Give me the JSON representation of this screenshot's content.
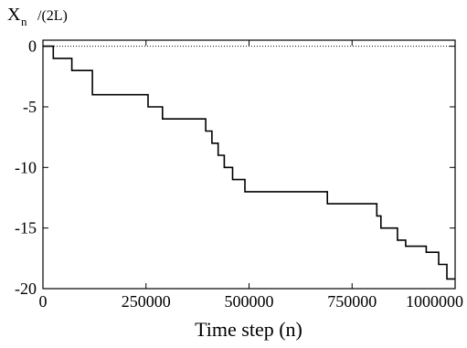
{
  "chart_data": {
    "type": "line",
    "title": "",
    "ylabel_main": "X",
    "ylabel_sub": "n",
    "ylabel_suffix": "/(2L)",
    "xlabel": "Time step (n)",
    "xlim": [
      0,
      1000000
    ],
    "ylim": [
      -20,
      0.5
    ],
    "xticks": [
      0,
      250000,
      500000,
      750000,
      1000000
    ],
    "xtick_labels": [
      "0",
      "250000",
      "500000",
      "750000",
      "1000000"
    ],
    "yticks": [
      0,
      -5,
      -10,
      -15,
      -20
    ],
    "ytick_labels": [
      "0",
      "-5",
      "-10",
      "-15",
      "-20"
    ],
    "grid": false,
    "series": [
      {
        "color": "#000000",
        "x": [
          0,
          25000,
          25000,
          70000,
          70000,
          120000,
          120000,
          255000,
          255000,
          290000,
          290000,
          395000,
          395000,
          410000,
          410000,
          425000,
          425000,
          440000,
          440000,
          460000,
          460000,
          490000,
          490000,
          690000,
          690000,
          810000,
          810000,
          820000,
          820000,
          860000,
          860000,
          880000,
          880000,
          930000,
          930000,
          960000,
          960000,
          980000,
          980000,
          1000000
        ],
        "y": [
          0,
          0,
          -1,
          -1,
          -2,
          -2,
          -4,
          -4,
          -5,
          -5,
          -6,
          -6,
          -7,
          -7,
          -8,
          -8,
          -9,
          -9,
          -10,
          -10,
          -11,
          -11,
          -12,
          -12,
          -13,
          -13,
          -14,
          -14,
          -15,
          -15,
          -16,
          -16,
          -16.5,
          -16.5,
          -17,
          -17,
          -18,
          -18,
          -19.2,
          -19.2
        ]
      }
    ]
  }
}
